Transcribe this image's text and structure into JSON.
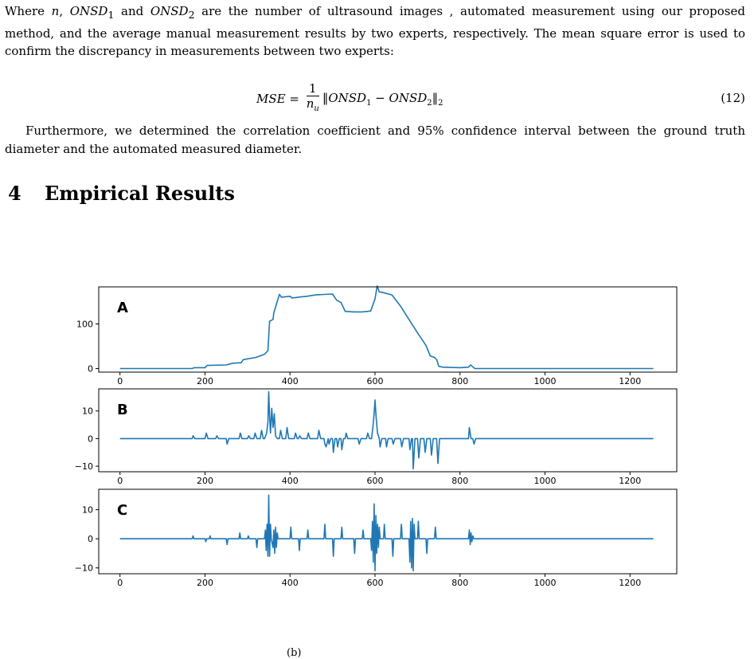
{
  "paragraph1": {
    "lead": "Where ",
    "n": "n",
    "sep1": ", ",
    "onsd1": "ONSD",
    "sub1": "1",
    "and": " and ",
    "onsd2": "ONSD",
    "sub2": "2",
    "rest": " are the number of ultrasound images , automated measurement using our proposed method, and the average manual measurement results by two experts, respectively. The mean square error is used to confirm the discrepancy in measurements between two experts:"
  },
  "equation": {
    "lhs": "MSE",
    "eq": " = ",
    "num": "1",
    "den": "n",
    "den_sub": "u",
    "body": "‖ONSD",
    "b_sub1": "1",
    "minus": " − ONSD",
    "b_sub2": "2",
    "close": "‖",
    "norm_sub": "2",
    "number": "(12)"
  },
  "paragraph2": "Furthermore, we determined the correlation coefficient and 95% confidence interval between the ground truth diameter and the automated measured diameter.",
  "section": {
    "number": "4",
    "title": "Empirical Results"
  },
  "chart_data": [
    {
      "type": "line",
      "panel_label": "A",
      "xlim": [
        -50,
        1310
      ],
      "ylim": [
        -8,
        183
      ],
      "xticks": [
        0,
        200,
        400,
        600,
        800,
        1000,
        1200
      ],
      "yticks": [
        0,
        100
      ],
      "series": [
        {
          "color": "#1f77b4",
          "x": [
            0,
            170,
            175,
            200,
            205,
            250,
            265,
            285,
            290,
            320,
            340,
            348,
            352,
            360,
            362,
            375,
            380,
            400,
            405,
            420,
            440,
            460,
            480,
            500,
            510,
            520,
            530,
            550,
            570,
            590,
            600,
            605,
            610,
            620,
            640,
            660,
            680,
            700,
            720,
            730,
            740,
            745,
            750,
            760,
            800,
            820,
            825,
            830,
            835,
            850,
            1000,
            1200,
            1255
          ],
          "y": [
            0,
            0,
            2,
            2,
            7,
            8,
            12,
            13,
            20,
            25,
            32,
            40,
            106,
            110,
            125,
            166,
            160,
            162,
            158,
            160,
            162,
            165,
            166,
            167,
            153,
            148,
            128,
            127,
            127,
            129,
            156,
            185,
            172,
            170,
            165,
            140,
            110,
            80,
            52,
            28,
            25,
            20,
            5,
            3,
            2,
            3,
            8,
            4,
            0,
            0,
            0,
            0,
            0
          ]
        }
      ]
    },
    {
      "type": "line",
      "panel_label": "B",
      "xlim": [
        -50,
        1310
      ],
      "ylim": [
        -12,
        18
      ],
      "xticks": [
        0,
        200,
        400,
        600,
        800,
        1000,
        1200
      ],
      "yticks": [
        -10,
        0,
        10
      ],
      "series": [
        {
          "color": "#1f77b4",
          "x": [
            0,
            170,
            172,
            176,
            200,
            203,
            207,
            225,
            228,
            232,
            250,
            252,
            256,
            280,
            283,
            287,
            300,
            303,
            307,
            315,
            318,
            322,
            330,
            333,
            337,
            340,
            345,
            348,
            350,
            352,
            354,
            357,
            360,
            363,
            366,
            370,
            375,
            378,
            382,
            390,
            393,
            397,
            410,
            413,
            417,
            420,
            423,
            427,
            440,
            443,
            447,
            465,
            468,
            472,
            480,
            482,
            485,
            490,
            492,
            496,
            500,
            502,
            506,
            510,
            512,
            516,
            520,
            522,
            526,
            530,
            532,
            536,
            560,
            563,
            567,
            580,
            583,
            587,
            592,
            595,
            598,
            600,
            603,
            606,
            610,
            612,
            616,
            625,
            627,
            631,
            640,
            643,
            647,
            660,
            663,
            667,
            680,
            682,
            686,
            688,
            690,
            694,
            700,
            703,
            707,
            715,
            718,
            722,
            730,
            733,
            737,
            745,
            748,
            752,
            760,
            800,
            820,
            822,
            826,
            830,
            833,
            837,
            1255
          ],
          "y": [
            0,
            0,
            1,
            0,
            0,
            2,
            0,
            0,
            1,
            0,
            0,
            -2,
            0,
            0,
            2,
            0,
            0,
            1,
            0,
            0,
            2,
            0,
            0,
            3,
            0,
            0,
            2,
            6,
            17,
            8,
            2,
            11,
            4,
            9,
            1,
            0,
            0,
            3,
            0,
            0,
            4,
            0,
            0,
            2,
            0,
            0,
            1,
            0,
            0,
            2,
            0,
            0,
            3,
            0,
            0,
            -2,
            -3,
            0,
            -2,
            0,
            0,
            -5,
            0,
            0,
            -3,
            0,
            0,
            -4,
            0,
            0,
            2,
            0,
            0,
            -2,
            0,
            0,
            2,
            0,
            0,
            4,
            9,
            14,
            7,
            2,
            0,
            -3,
            0,
            0,
            -3,
            0,
            0,
            -2,
            0,
            0,
            -3,
            0,
            0,
            -4,
            0,
            0,
            -11,
            0,
            0,
            -7,
            0,
            0,
            -5,
            0,
            0,
            -6,
            0,
            0,
            -9,
            0,
            0,
            0,
            0,
            4,
            0,
            0,
            -2,
            0,
            0
          ]
        }
      ]
    },
    {
      "type": "line",
      "panel_label": "C",
      "xlim": [
        -50,
        1310
      ],
      "ylim": [
        -12,
        17
      ],
      "xticks": [
        0,
        200,
        400,
        600,
        800,
        1000,
        1200
      ],
      "yticks": [
        -10,
        0,
        10
      ],
      "series": [
        {
          "color": "#1f77b4",
          "x": [
            0,
            170,
            172,
            174,
            200,
            202,
            204,
            210,
            212,
            214,
            250,
            252,
            254,
            280,
            282,
            284,
            300,
            302,
            304,
            320,
            322,
            324,
            340,
            342,
            344,
            346,
            348,
            350,
            352,
            354,
            356,
            360,
            362,
            364,
            366,
            368,
            370,
            372,
            374,
            400,
            402,
            404,
            420,
            422,
            424,
            440,
            442,
            444,
            480,
            482,
            484,
            500,
            502,
            504,
            520,
            522,
            524,
            550,
            552,
            554,
            570,
            572,
            574,
            590,
            592,
            594,
            596,
            598,
            600,
            602,
            604,
            606,
            608,
            610,
            612,
            614,
            620,
            622,
            624,
            640,
            642,
            644,
            660,
            662,
            664,
            680,
            682,
            684,
            686,
            688,
            690,
            692,
            694,
            700,
            702,
            704,
            720,
            722,
            724,
            740,
            742,
            744,
            760,
            800,
            820,
            822,
            824,
            826,
            828,
            830,
            832,
            1255
          ],
          "y": [
            0,
            0,
            1,
            0,
            0,
            -1,
            0,
            0,
            1,
            0,
            0,
            -2,
            0,
            0,
            2,
            0,
            0,
            1,
            0,
            0,
            -3,
            0,
            0,
            3,
            -4,
            5,
            -6,
            15,
            -6,
            5,
            0,
            -3,
            3,
            -5,
            4,
            -3,
            2,
            0,
            0,
            0,
            4,
            0,
            0,
            -4,
            0,
            0,
            3,
            0,
            0,
            5,
            0,
            0,
            -6,
            0,
            0,
            4,
            0,
            0,
            -5,
            0,
            0,
            3,
            0,
            0,
            -4,
            6,
            -8,
            12,
            -11,
            8,
            -5,
            5,
            -3,
            4,
            0,
            0,
            0,
            5,
            0,
            0,
            -6,
            0,
            0,
            5,
            0,
            0,
            -8,
            6,
            -10,
            7,
            -11,
            5,
            0,
            0,
            6,
            0,
            0,
            -5,
            0,
            0,
            4,
            0,
            0,
            0,
            0,
            3,
            -2,
            2,
            -1,
            1,
            0,
            0
          ]
        }
      ]
    }
  ],
  "caption": "(b)"
}
